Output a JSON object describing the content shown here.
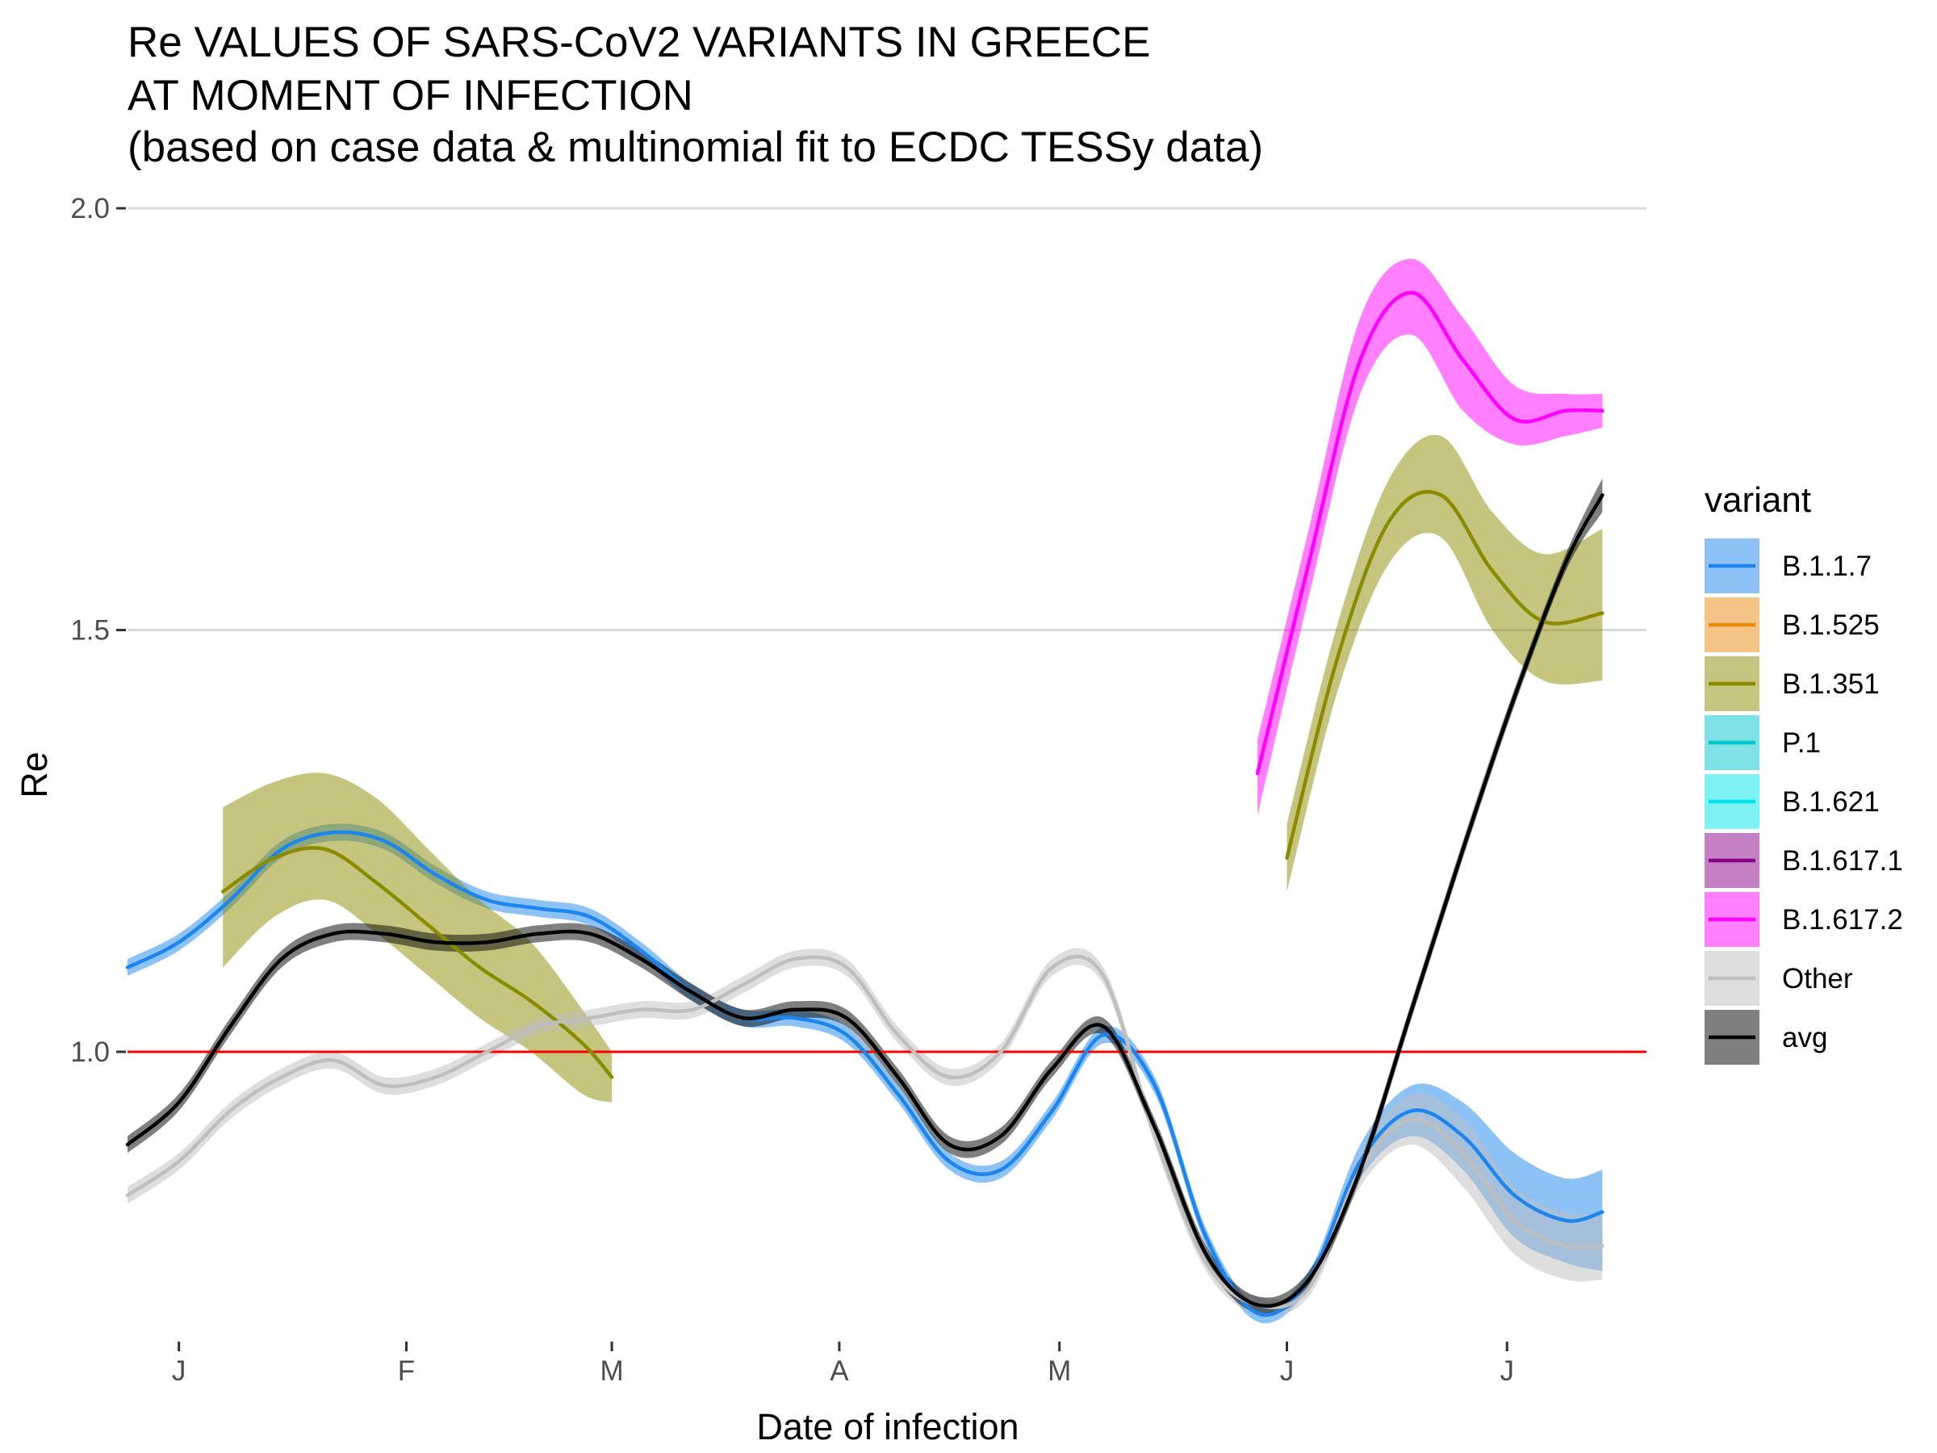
{
  "chart_data": {
    "type": "line",
    "title": [
      "Re VALUES OF SARS-CoV2 VARIANTS IN GREECE",
      "AT MOMENT OF INFECTION",
      "(based on case data & multinomial fit to ECDC TESSy data)"
    ],
    "xlabel": "Date of infection",
    "ylabel": "Re",
    "x_type": "date",
    "xlim": [
      "2020-12-25",
      "2021-07-20"
    ],
    "ylim": [
      0.655,
      2.0
    ],
    "x_ticks": [
      {
        "x": "2021-01-01",
        "label": "J"
      },
      {
        "x": "2021-02-01",
        "label": "F"
      },
      {
        "x": "2021-03-01",
        "label": "M"
      },
      {
        "x": "2021-04-01",
        "label": "A"
      },
      {
        "x": "2021-05-01",
        "label": "M"
      },
      {
        "x": "2021-06-01",
        "label": "J"
      },
      {
        "x": "2021-07-01",
        "label": "J"
      }
    ],
    "y_ticks": [
      {
        "y": 1.0,
        "label": "1.0"
      },
      {
        "y": 1.5,
        "label": "1.5"
      },
      {
        "y": 2.0,
        "label": "2.0"
      }
    ],
    "grid": true,
    "reference_line": {
      "y": 1.0,
      "color": "#ff0000"
    },
    "legend_title": "variant",
    "legend_position": "right",
    "legend": [
      {
        "name": "B.1.1.7",
        "color": "#1c86ee"
      },
      {
        "name": "B.1.525",
        "color": "#e8890c"
      },
      {
        "name": "B.1.351",
        "color": "#8b8b00"
      },
      {
        "name": "P.1",
        "color": "#00c5cd"
      },
      {
        "name": "B.1.621",
        "color": "#00e5ee"
      },
      {
        "name": "B.1.617.1",
        "color": "#8b008b"
      },
      {
        "name": "B.1.617.2",
        "color": "#ff00ff"
      },
      {
        "name": "Other",
        "color": "#bebebe"
      },
      {
        "name": "avg",
        "color": "#000000"
      }
    ],
    "series": [
      {
        "name": "B.1.1.7",
        "color": "#1c86ee",
        "band_opacity": 0.5,
        "x": [
          "2020-12-25",
          "2021-01-01",
          "2021-01-08",
          "2021-01-15",
          "2021-01-22",
          "2021-01-29",
          "2021-02-05",
          "2021-02-12",
          "2021-02-19",
          "2021-02-26",
          "2021-03-05",
          "2021-03-12",
          "2021-03-19",
          "2021-03-26",
          "2021-04-02",
          "2021-04-09",
          "2021-04-16",
          "2021-04-23",
          "2021-04-30",
          "2021-05-07",
          "2021-05-14",
          "2021-05-21",
          "2021-05-28",
          "2021-06-04",
          "2021-06-11",
          "2021-06-18",
          "2021-06-25",
          "2021-07-02",
          "2021-07-09",
          "2021-07-14"
        ],
        "y": [
          1.1,
          1.13,
          1.18,
          1.24,
          1.26,
          1.25,
          1.21,
          1.18,
          1.17,
          1.16,
          1.12,
          1.07,
          1.04,
          1.04,
          1.02,
          0.95,
          0.87,
          0.86,
          0.93,
          1.02,
          0.96,
          0.78,
          0.69,
          0.73,
          0.87,
          0.93,
          0.9,
          0.83,
          0.8,
          0.81
        ],
        "lower": [
          1.09,
          1.12,
          1.17,
          1.23,
          1.25,
          1.24,
          1.2,
          1.17,
          1.16,
          1.15,
          1.11,
          1.06,
          1.03,
          1.03,
          1.01,
          0.94,
          0.86,
          0.85,
          0.92,
          1.01,
          0.95,
          0.77,
          0.68,
          0.72,
          0.85,
          0.9,
          0.86,
          0.78,
          0.75,
          0.74
        ],
        "upper": [
          1.11,
          1.14,
          1.19,
          1.25,
          1.27,
          1.26,
          1.22,
          1.19,
          1.18,
          1.17,
          1.13,
          1.08,
          1.05,
          1.05,
          1.03,
          0.96,
          0.88,
          0.87,
          0.94,
          1.03,
          0.97,
          0.79,
          0.7,
          0.74,
          0.89,
          0.96,
          0.94,
          0.88,
          0.85,
          0.86
        ]
      },
      {
        "name": "B.1.351",
        "color": "#8b8b00",
        "band_opacity": 0.5,
        "x": [
          "2021-01-07",
          "2021-01-14",
          "2021-01-21",
          "2021-01-28",
          "2021-02-04",
          "2021-02-11",
          "2021-02-18",
          "2021-02-25",
          "2021-03-01"
        ],
        "y": [
          1.19,
          1.23,
          1.24,
          1.2,
          1.15,
          1.1,
          1.06,
          1.01,
          0.97
        ],
        "lower": [
          1.1,
          1.16,
          1.18,
          1.14,
          1.09,
          1.04,
          1.0,
          0.95,
          0.94
        ],
        "upper": [
          1.29,
          1.32,
          1.33,
          1.3,
          1.24,
          1.18,
          1.13,
          1.05,
          1.0
        ]
      },
      {
        "name": "B.1.351",
        "color": "#8b8b00",
        "band_opacity": 0.5,
        "x": [
          "2021-06-01",
          "2021-06-08",
          "2021-06-15",
          "2021-06-22",
          "2021-06-29",
          "2021-07-06",
          "2021-07-14"
        ],
        "y": [
          1.23,
          1.47,
          1.63,
          1.66,
          1.57,
          1.51,
          1.52
        ],
        "lower": [
          1.19,
          1.43,
          1.58,
          1.61,
          1.5,
          1.44,
          1.44
        ],
        "upper": [
          1.27,
          1.51,
          1.68,
          1.73,
          1.64,
          1.59,
          1.62
        ]
      },
      {
        "name": "B.1.617.2",
        "color": "#ff00ff",
        "band_opacity": 0.5,
        "x": [
          "2021-05-28",
          "2021-06-04",
          "2021-06-11",
          "2021-06-18",
          "2021-06-25",
          "2021-07-02",
          "2021-07-09",
          "2021-07-14"
        ],
        "y": [
          1.33,
          1.58,
          1.82,
          1.9,
          1.82,
          1.75,
          1.76,
          1.76
        ],
        "lower": [
          1.28,
          1.54,
          1.78,
          1.85,
          1.76,
          1.72,
          1.73,
          1.74
        ],
        "upper": [
          1.37,
          1.62,
          1.87,
          1.94,
          1.87,
          1.79,
          1.78,
          1.78
        ]
      },
      {
        "name": "Other",
        "color": "#bebebe",
        "band_opacity": 0.5,
        "x": [
          "2020-12-25",
          "2021-01-01",
          "2021-01-08",
          "2021-01-15",
          "2021-01-22",
          "2021-01-29",
          "2021-02-05",
          "2021-02-12",
          "2021-02-19",
          "2021-02-26",
          "2021-03-05",
          "2021-03-12",
          "2021-03-19",
          "2021-03-26",
          "2021-04-02",
          "2021-04-09",
          "2021-04-16",
          "2021-04-23",
          "2021-04-30",
          "2021-05-07",
          "2021-05-14",
          "2021-05-21",
          "2021-05-28",
          "2021-06-04",
          "2021-06-11",
          "2021-06-18",
          "2021-06-25",
          "2021-07-02",
          "2021-07-09",
          "2021-07-14"
        ],
        "y": [
          0.83,
          0.87,
          0.93,
          0.97,
          0.99,
          0.96,
          0.97,
          1.0,
          1.03,
          1.04,
          1.05,
          1.05,
          1.08,
          1.11,
          1.1,
          1.02,
          0.97,
          1.0,
          1.1,
          1.09,
          0.9,
          0.75,
          0.7,
          0.72,
          0.86,
          0.92,
          0.88,
          0.8,
          0.77,
          0.77
        ],
        "lower": [
          0.82,
          0.86,
          0.92,
          0.96,
          0.98,
          0.95,
          0.96,
          0.99,
          1.02,
          1.03,
          1.04,
          1.04,
          1.07,
          1.1,
          1.09,
          1.01,
          0.96,
          0.99,
          1.09,
          1.08,
          0.89,
          0.74,
          0.69,
          0.71,
          0.84,
          0.89,
          0.84,
          0.76,
          0.73,
          0.73
        ],
        "upper": [
          0.84,
          0.88,
          0.94,
          0.98,
          1.0,
          0.97,
          0.98,
          1.01,
          1.04,
          1.05,
          1.06,
          1.06,
          1.09,
          1.12,
          1.11,
          1.03,
          0.98,
          1.01,
          1.11,
          1.1,
          0.91,
          0.76,
          0.71,
          0.73,
          0.88,
          0.95,
          0.92,
          0.84,
          0.81,
          0.81
        ]
      },
      {
        "name": "avg",
        "color": "#000000",
        "band_opacity": 0.5,
        "x": [
          "2020-12-25",
          "2021-01-01",
          "2021-01-08",
          "2021-01-15",
          "2021-01-22",
          "2021-01-29",
          "2021-02-05",
          "2021-02-12",
          "2021-02-19",
          "2021-02-26",
          "2021-03-05",
          "2021-03-12",
          "2021-03-19",
          "2021-03-26",
          "2021-04-02",
          "2021-04-09",
          "2021-04-16",
          "2021-04-23",
          "2021-04-30",
          "2021-05-07",
          "2021-05-14",
          "2021-05-21",
          "2021-05-28",
          "2021-06-04",
          "2021-06-11",
          "2021-06-18",
          "2021-06-25",
          "2021-07-02",
          "2021-07-09",
          "2021-07-14"
        ],
        "y": [
          0.89,
          0.94,
          1.03,
          1.11,
          1.14,
          1.14,
          1.13,
          1.13,
          1.14,
          1.14,
          1.11,
          1.07,
          1.04,
          1.05,
          1.04,
          0.97,
          0.89,
          0.9,
          0.98,
          1.03,
          0.91,
          0.76,
          0.7,
          0.73,
          0.86,
          1.05,
          1.24,
          1.42,
          1.58,
          1.66
        ],
        "lower": [
          0.88,
          0.93,
          1.02,
          1.1,
          1.13,
          1.13,
          1.12,
          1.12,
          1.13,
          1.13,
          1.1,
          1.06,
          1.03,
          1.04,
          1.03,
          0.96,
          0.88,
          0.89,
          0.97,
          1.02,
          0.9,
          0.75,
          0.69,
          0.72,
          0.85,
          1.04,
          1.23,
          1.41,
          1.57,
          1.64
        ],
        "upper": [
          0.9,
          0.95,
          1.04,
          1.12,
          1.15,
          1.15,
          1.14,
          1.14,
          1.15,
          1.15,
          1.12,
          1.08,
          1.05,
          1.06,
          1.05,
          0.98,
          0.9,
          0.91,
          0.99,
          1.04,
          0.92,
          0.77,
          0.71,
          0.74,
          0.87,
          1.06,
          1.25,
          1.43,
          1.59,
          1.68
        ]
      }
    ]
  }
}
